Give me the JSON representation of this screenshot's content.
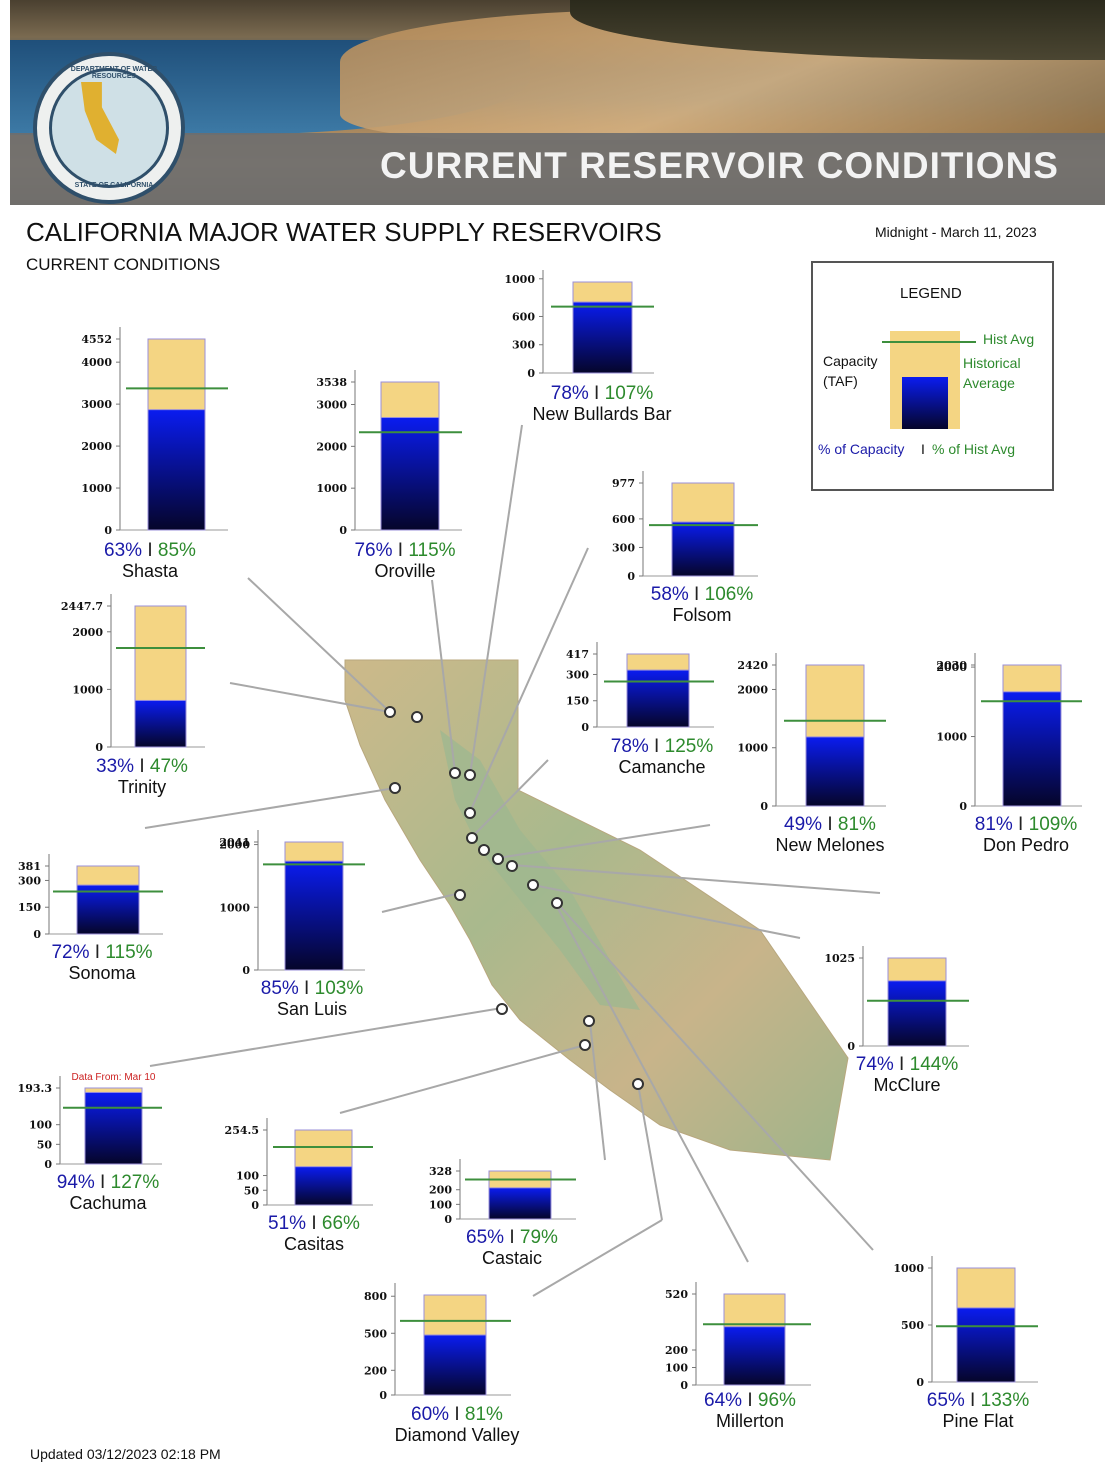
{
  "header": {
    "banner_title": "CURRENT RESERVOIR CONDITIONS",
    "seal_top": "DEPARTMENT OF WATER RESOURCES",
    "seal_bottom": "STATE OF CALIFORNIA",
    "title": "CALIFORNIA MAJOR WATER SUPPLY RESERVOIRS",
    "subtitle": "CURRENT CONDITIONS",
    "date": "Midnight - March 11, 2023",
    "updated": "Updated 03/12/2023 02:18 PM"
  },
  "legend": {
    "title": "LEGEND",
    "capacity": "Capacity",
    "taf": "(TAF)",
    "hist_avg": "Hist Avg",
    "historical": "Historical",
    "average": "Average",
    "pct_capacity": "% of Capacity",
    "pct_hist": "% of Hist Avg"
  },
  "colors": {
    "capacity": "#f4d583",
    "storage_top": "#0a1cf0",
    "storage_bottom": "#05052a",
    "hist_line": "#3d8f3d",
    "pct_capacity": "#1a1aa8",
    "pct_hist": "#2d8a2d",
    "note": "#cc2222"
  },
  "chart_data": [
    {
      "type": "bar",
      "name": "Shasta",
      "capacity": 4552,
      "storage": 2868,
      "hist_avg": 3374,
      "pct_capacity": "63%",
      "pct_hist": "85%",
      "ticks": [
        "0",
        "1000",
        "2000",
        "3000",
        "4000",
        "4552"
      ]
    },
    {
      "type": "bar",
      "name": "Oroville",
      "capacity": 3538,
      "storage": 2689,
      "hist_avg": 2338,
      "pct_capacity": "76%",
      "pct_hist": "115%",
      "ticks": [
        "0",
        "1000",
        "2000",
        "3000",
        "3538"
      ]
    },
    {
      "type": "bar",
      "name": "New Bullards Bar",
      "capacity": 966,
      "storage": 753,
      "hist_avg": 704,
      "pct_capacity": "78%",
      "pct_hist": "107%",
      "ticks": [
        "0",
        "300",
        "600",
        "1000"
      ]
    },
    {
      "type": "bar",
      "name": "Folsom",
      "capacity": 977,
      "storage": 567,
      "hist_avg": 535,
      "pct_capacity": "58%",
      "pct_hist": "106%",
      "ticks": [
        "0",
        "300",
        "600",
        "977"
      ]
    },
    {
      "type": "bar",
      "name": "Trinity",
      "capacity": 2447.7,
      "storage": 808,
      "hist_avg": 1718,
      "pct_capacity": "33%",
      "pct_hist": "47%",
      "ticks": [
        "0",
        "1000",
        "2000",
        "2447.7"
      ]
    },
    {
      "type": "bar",
      "name": "Camanche",
      "capacity": 417,
      "storage": 325,
      "hist_avg": 260,
      "pct_capacity": "78%",
      "pct_hist": "125%",
      "ticks": [
        "0",
        "150",
        "300",
        "417"
      ]
    },
    {
      "type": "bar",
      "name": "New Melones",
      "capacity": 2420,
      "storage": 1186,
      "hist_avg": 1463,
      "pct_capacity": "49%",
      "pct_hist": "81%",
      "ticks": [
        "0",
        "1000",
        "2000",
        "2420"
      ]
    },
    {
      "type": "bar",
      "name": "Don Pedro",
      "capacity": 2030,
      "storage": 1644,
      "hist_avg": 1508,
      "pct_capacity": "81%",
      "pct_hist": "109%",
      "ticks": [
        "0",
        "1000",
        "2000",
        "2030"
      ]
    },
    {
      "type": "bar",
      "name": "Sonoma",
      "capacity": 381,
      "storage": 274,
      "hist_avg": 238,
      "pct_capacity": "72%",
      "pct_hist": "115%",
      "ticks": [
        "0",
        "150",
        "300",
        "381"
      ]
    },
    {
      "type": "bar",
      "name": "San Luis",
      "capacity": 2041,
      "storage": 1735,
      "hist_avg": 1684,
      "pct_capacity": "85%",
      "pct_hist": "103%",
      "ticks": [
        "0",
        "1000",
        "2000",
        "2041"
      ]
    },
    {
      "type": "bar",
      "name": "McClure",
      "capacity": 1025,
      "storage": 759,
      "hist_avg": 527,
      "pct_capacity": "74%",
      "pct_hist": "144%",
      "ticks": [
        "0",
        "1025"
      ]
    },
    {
      "type": "bar",
      "name": "Cachuma",
      "capacity": 193.3,
      "storage": 182,
      "hist_avg": 143,
      "pct_capacity": "94%",
      "pct_hist": "127%",
      "ticks": [
        "0",
        "50",
        "100",
        "193.3"
      ],
      "note": "Data From: Mar 10"
    },
    {
      "type": "bar",
      "name": "Casitas",
      "capacity": 254.5,
      "storage": 130,
      "hist_avg": 197,
      "pct_capacity": "51%",
      "pct_hist": "66%",
      "ticks": [
        "0",
        "50",
        "100",
        "254.5"
      ]
    },
    {
      "type": "bar",
      "name": "Castaic",
      "capacity": 328,
      "storage": 213,
      "hist_avg": 270,
      "pct_capacity": "65%",
      "pct_hist": "79%",
      "ticks": [
        "0",
        "100",
        "200",
        "328"
      ]
    },
    {
      "type": "bar",
      "name": "Diamond Valley",
      "capacity": 810,
      "storage": 486,
      "hist_avg": 600,
      "pct_capacity": "60%",
      "pct_hist": "81%",
      "ticks": [
        "0",
        "200",
        "500",
        "800"
      ]
    },
    {
      "type": "bar",
      "name": "Millerton",
      "capacity": 520,
      "storage": 333,
      "hist_avg": 347,
      "pct_capacity": "64%",
      "pct_hist": "96%",
      "ticks": [
        "0",
        "100",
        "200",
        "520"
      ]
    },
    {
      "type": "bar",
      "name": "Pine Flat",
      "capacity": 1000,
      "storage": 650,
      "hist_avg": 489,
      "pct_capacity": "65%",
      "pct_hist": "133%",
      "ticks": [
        "0",
        "500",
        "1000"
      ]
    }
  ]
}
